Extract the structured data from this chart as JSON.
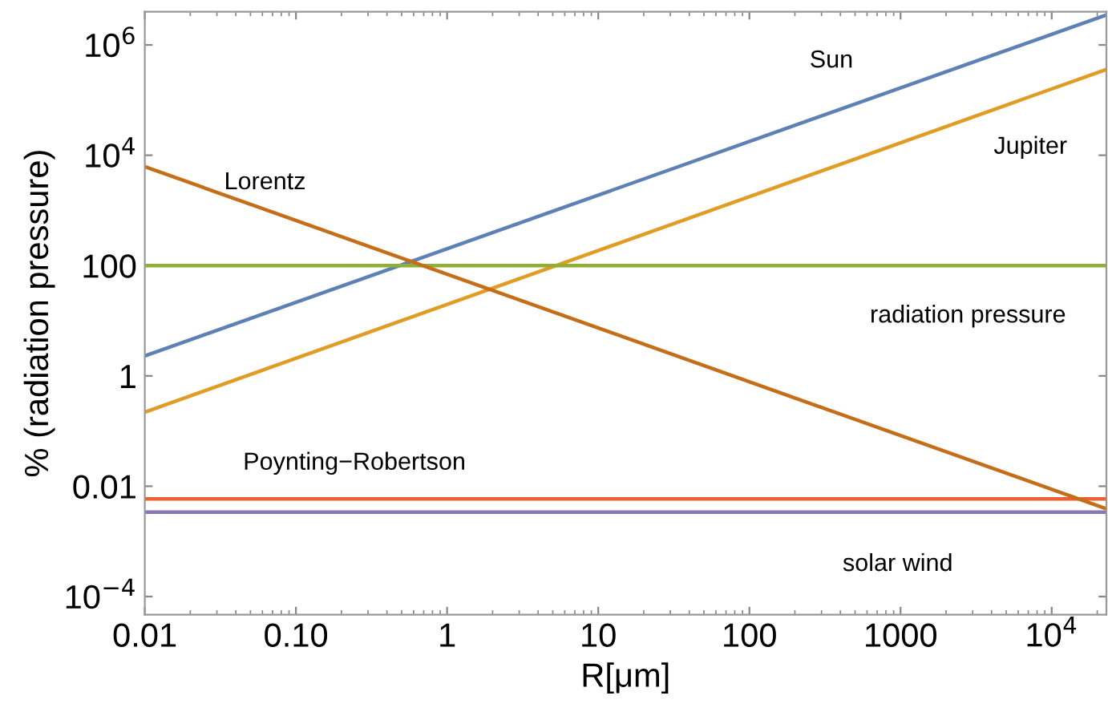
{
  "chart_data": {
    "type": "line",
    "xlabel": "R[μm]",
    "ylabel": "% (radiation pressure)",
    "log": "xy",
    "xlim": [
      0.01,
      23000
    ],
    "ylim": [
      4.7e-05,
      4000000
    ],
    "xticks": [
      {
        "value": 0.01,
        "label": "0.01"
      },
      {
        "value": 0.1,
        "label": "0.10"
      },
      1,
      10,
      100,
      1000,
      {
        "value": 10000,
        "label": "10$^{4}$"
      }
    ],
    "yticks": [
      {
        "value": 0.0001,
        "label": "10$^{−4}$"
      },
      0.01,
      1,
      100,
      {
        "value": 10000,
        "label": "10$^{4}$"
      },
      {
        "value": 1000000,
        "label": "10$^{6}$"
      }
    ],
    "x": [
      0.01,
      23000
    ],
    "grid": false,
    "legend": false,
    "series": [
      {
        "name": "Sun",
        "color": "#5e81b5",
        "values": [
          2.3,
          3500000
        ]
      },
      {
        "name": "Jupiter",
        "color": "#e19c24",
        "values": [
          0.22,
          360000
        ]
      },
      {
        "name": "radiation pressure",
        "color": "#8fb032",
        "values": [
          100,
          100
        ]
      },
      {
        "name": "Poynting−Robertson",
        "color": "#eb6235",
        "values": [
          0.0059,
          0.0059
        ]
      },
      {
        "name": "solar wind",
        "color": "#8778b3",
        "values": [
          0.0034,
          0.0034
        ]
      },
      {
        "name": "Lorentz",
        "color": "#c56e1a",
        "values": [
          6200,
          0.0039
        ]
      }
    ]
  }
}
